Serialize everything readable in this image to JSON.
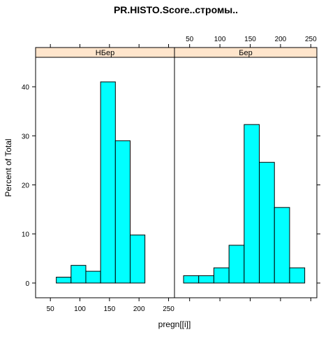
{
  "chart_data": {
    "type": "bar",
    "title": "PR.HISTO.Score..стромы..",
    "xlabel": "pregn[[i]]",
    "ylabel": "Percent of Total",
    "xlim": [
      25,
      260
    ],
    "ylim": [
      -3,
      46
    ],
    "x_ticks": [
      50,
      100,
      150,
      200,
      250
    ],
    "y_ticks": [
      0,
      10,
      20,
      30,
      40
    ],
    "strip_color": "#ffe5cc",
    "bar_color": "#00ffff",
    "panels": [
      {
        "strip_label": "НБер",
        "bins": [
          {
            "from": 35,
            "to": 60,
            "value": 0
          },
          {
            "from": 60,
            "to": 85,
            "value": 1.2
          },
          {
            "from": 85,
            "to": 110,
            "value": 3.6
          },
          {
            "from": 110,
            "to": 135,
            "value": 2.4
          },
          {
            "from": 135,
            "to": 160,
            "value": 41.0
          },
          {
            "from": 160,
            "to": 185,
            "value": 29.0
          },
          {
            "from": 185,
            "to": 210,
            "value": 9.8
          },
          {
            "from": 210,
            "to": 235,
            "value": 0
          }
        ]
      },
      {
        "strip_label": "Бер",
        "bins": [
          {
            "from": 40,
            "to": 65,
            "value": 1.5
          },
          {
            "from": 65,
            "to": 90,
            "value": 1.5
          },
          {
            "from": 90,
            "to": 115,
            "value": 3.1
          },
          {
            "from": 115,
            "to": 140,
            "value": 7.7
          },
          {
            "from": 140,
            "to": 165,
            "value": 32.3
          },
          {
            "from": 165,
            "to": 190,
            "value": 24.6
          },
          {
            "from": 190,
            "to": 215,
            "value": 15.4
          },
          {
            "from": 215,
            "to": 240,
            "value": 3.1
          }
        ]
      }
    ]
  }
}
